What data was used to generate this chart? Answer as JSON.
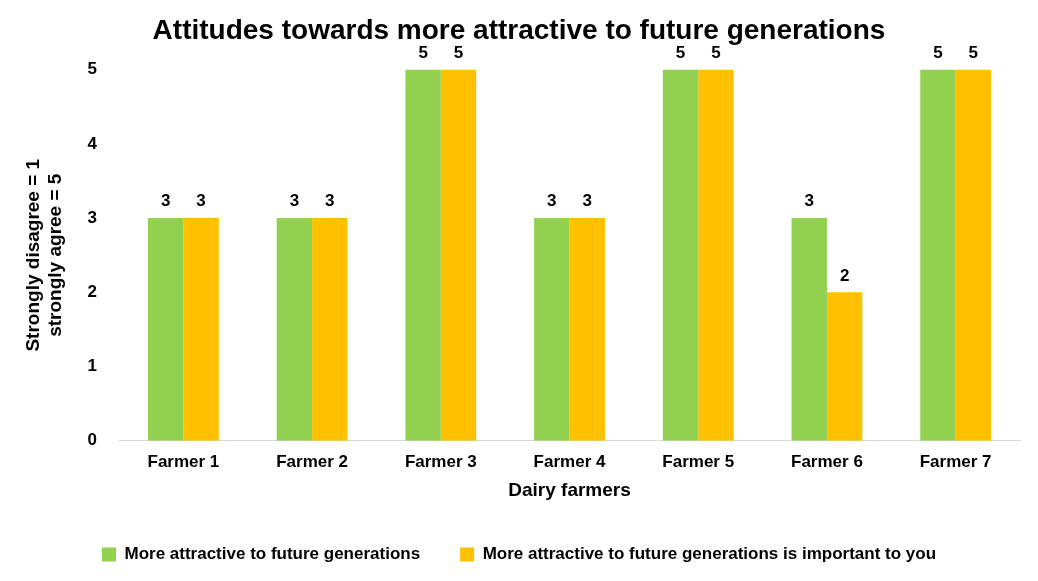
{
  "chart_data": {
    "type": "bar",
    "title": "Attitudes towards more attractive to future generations",
    "xlabel": "Dairy farmers",
    "ylabel": "Strongly disagree = 1\nstrongly agree = 5",
    "categories": [
      "Farmer 1",
      "Farmer 2",
      "Farmer 3",
      "Farmer 4",
      "Farmer 5",
      "Farmer 6",
      "Farmer 7"
    ],
    "series": [
      {
        "name": "More attractive to future generations",
        "color": "#92d050",
        "values": [
          3,
          3,
          5,
          3,
          5,
          3,
          5
        ]
      },
      {
        "name": "More attractive to future generations is important to you",
        "color": "#ffc000",
        "values": [
          3,
          3,
          5,
          3,
          5,
          2,
          5
        ]
      }
    ],
    "ylim": [
      0,
      5
    ],
    "yticks": [
      0,
      1,
      2,
      3,
      4,
      5
    ],
    "grid": false,
    "legend": "bottom",
    "data_labels": true
  }
}
